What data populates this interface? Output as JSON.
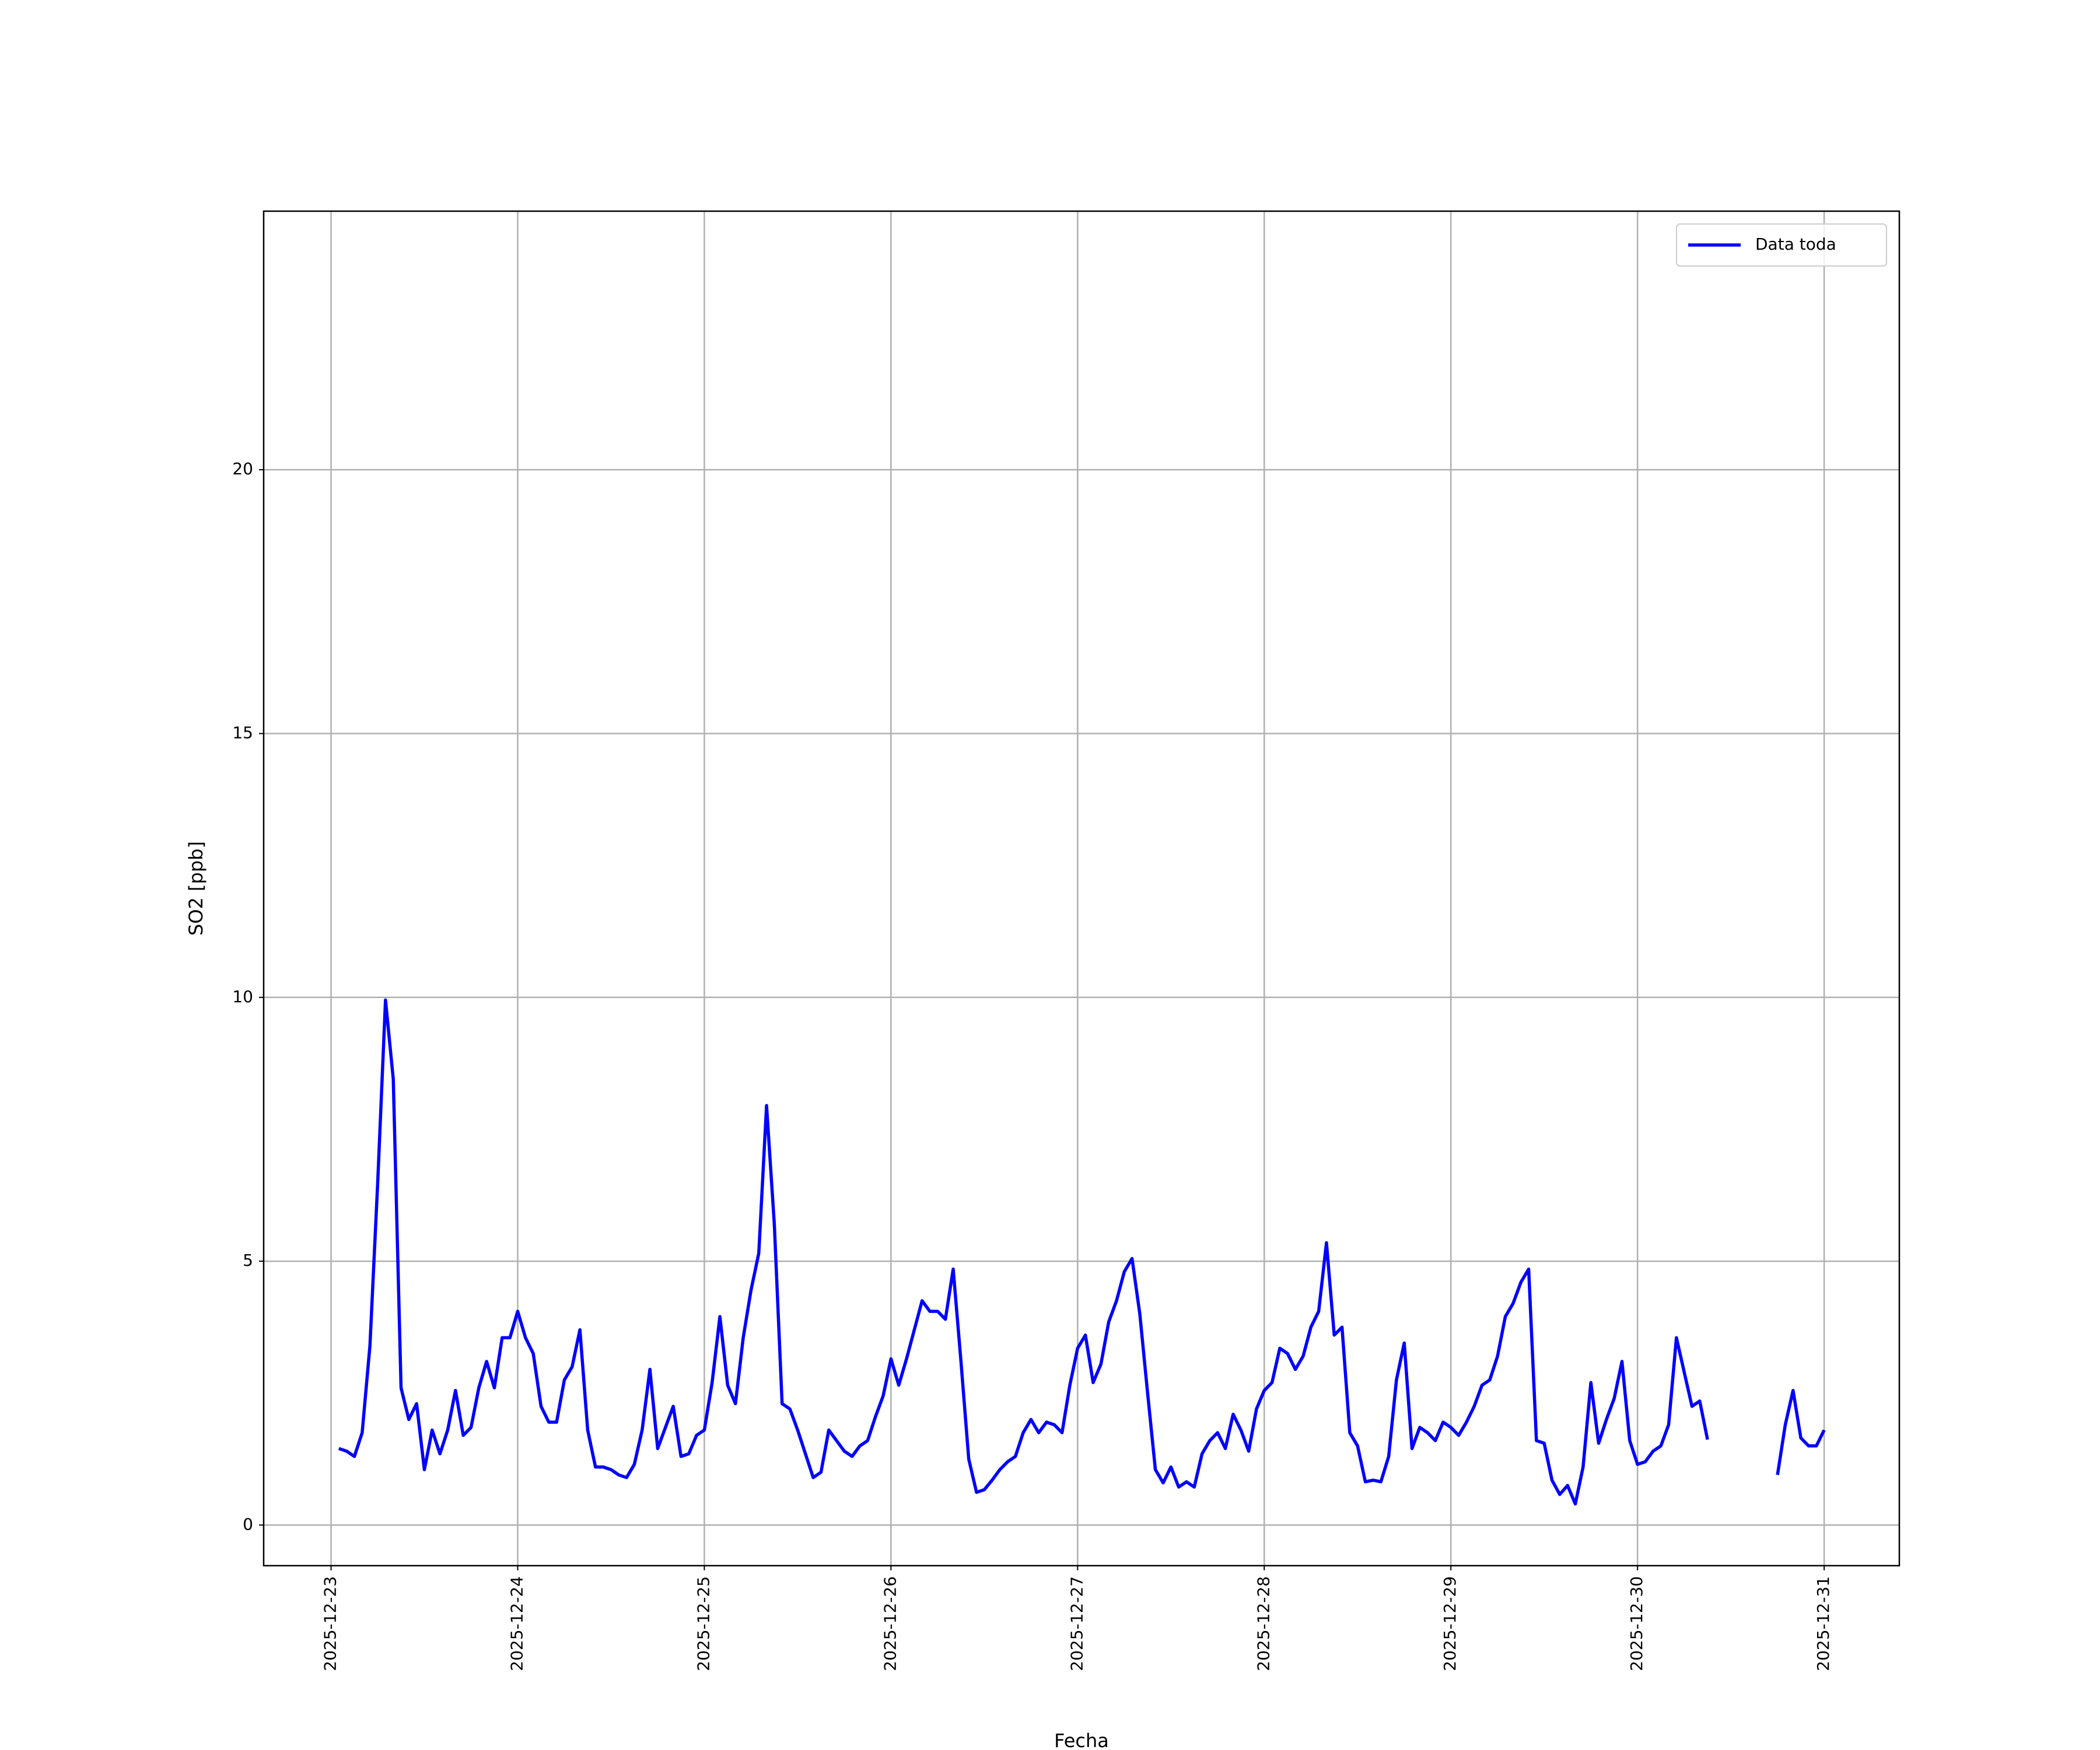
{
  "chart_data": {
    "type": "line",
    "x_label": "Fecha",
    "y_label": "SO2 [ppb]",
    "x": [
      "2025-12-23 01:00",
      "2025-12-23 02:00",
      "2025-12-23 03:00",
      "2025-12-23 04:00",
      "2025-12-23 05:00",
      "2025-12-23 06:00",
      "2025-12-23 07:00",
      "2025-12-23 08:00",
      "2025-12-23 09:00",
      "2025-12-23 10:00",
      "2025-12-23 11:00",
      "2025-12-23 12:00",
      "2025-12-23 13:00",
      "2025-12-23 14:00",
      "2025-12-23 15:00",
      "2025-12-23 16:00",
      "2025-12-23 17:00",
      "2025-12-23 18:00",
      "2025-12-23 19:00",
      "2025-12-23 20:00",
      "2025-12-23 21:00",
      "2025-12-23 22:00",
      "2025-12-23 23:00",
      "2025-12-24 00:00",
      "2025-12-24 01:00",
      "2025-12-24 02:00",
      "2025-12-24 03:00",
      "2025-12-24 04:00",
      "2025-12-24 05:00",
      "2025-12-24 06:00",
      "2025-12-24 07:00",
      "2025-12-24 08:00",
      "2025-12-24 09:00",
      "2025-12-24 10:00",
      "2025-12-24 11:00",
      "2025-12-24 12:00",
      "2025-12-24 13:00",
      "2025-12-24 14:00",
      "2025-12-24 15:00",
      "2025-12-24 16:00",
      "2025-12-24 17:00",
      "2025-12-24 18:00",
      "2025-12-24 19:00",
      "2025-12-24 20:00",
      "2025-12-24 21:00",
      "2025-12-24 22:00",
      "2025-12-24 23:00",
      "2025-12-25 00:00",
      "2025-12-25 01:00",
      "2025-12-25 02:00",
      "2025-12-25 03:00",
      "2025-12-25 04:00",
      "2025-12-25 05:00",
      "2025-12-25 06:00",
      "2025-12-25 07:00",
      "2025-12-25 08:00",
      "2025-12-25 09:00",
      "2025-12-25 10:00",
      "2025-12-25 11:00",
      "2025-12-25 12:00",
      "2025-12-25 13:00",
      "2025-12-25 14:00",
      "2025-12-25 15:00",
      "2025-12-25 16:00",
      "2025-12-25 17:00",
      "2025-12-25 18:00",
      "2025-12-25 19:00",
      "2025-12-25 20:00",
      "2025-12-25 21:00",
      "2025-12-25 22:00",
      "2025-12-25 23:00",
      "2025-12-26 00:00",
      "2025-12-26 01:00",
      "2025-12-26 02:00",
      "2025-12-26 03:00",
      "2025-12-26 04:00",
      "2025-12-26 05:00",
      "2025-12-26 06:00",
      "2025-12-26 07:00",
      "2025-12-26 08:00",
      "2025-12-26 09:00",
      "2025-12-26 10:00",
      "2025-12-26 11:00",
      "2025-12-26 12:00",
      "2025-12-26 13:00",
      "2025-12-26 14:00",
      "2025-12-26 15:00",
      "2025-12-26 16:00",
      "2025-12-26 17:00",
      "2025-12-26 18:00",
      "2025-12-26 19:00",
      "2025-12-26 20:00",
      "2025-12-26 21:00",
      "2025-12-26 22:00",
      "2025-12-26 23:00",
      "2025-12-27 00:00",
      "2025-12-27 01:00",
      "2025-12-27 02:00",
      "2025-12-27 03:00",
      "2025-12-27 04:00",
      "2025-12-27 05:00",
      "2025-12-27 06:00",
      "2025-12-27 07:00",
      "2025-12-27 08:00",
      "2025-12-27 09:00",
      "2025-12-27 10:00",
      "2025-12-27 11:00",
      "2025-12-27 12:00",
      "2025-12-27 13:00",
      "2025-12-27 14:00",
      "2025-12-27 15:00",
      "2025-12-27 16:00",
      "2025-12-27 17:00",
      "2025-12-27 18:00",
      "2025-12-27 19:00",
      "2025-12-27 20:00",
      "2025-12-27 21:00",
      "2025-12-27 22:00",
      "2025-12-27 23:00",
      "2025-12-28 00:00",
      "2025-12-28 01:00",
      "2025-12-28 02:00",
      "2025-12-28 03:00",
      "2025-12-28 04:00",
      "2025-12-28 05:00",
      "2025-12-28 06:00",
      "2025-12-28 07:00",
      "2025-12-28 08:00",
      "2025-12-28 09:00",
      "2025-12-28 10:00",
      "2025-12-28 11:00",
      "2025-12-28 12:00",
      "2025-12-28 13:00",
      "2025-12-28 14:00",
      "2025-12-28 15:00",
      "2025-12-28 16:00",
      "2025-12-28 17:00",
      "2025-12-28 18:00",
      "2025-12-28 19:00",
      "2025-12-28 20:00",
      "2025-12-28 21:00",
      "2025-12-28 22:00",
      "2025-12-28 23:00",
      "2025-12-29 00:00",
      "2025-12-29 01:00",
      "2025-12-29 02:00",
      "2025-12-29 03:00",
      "2025-12-29 04:00",
      "2025-12-29 05:00",
      "2025-12-29 06:00",
      "2025-12-29 07:00",
      "2025-12-29 08:00",
      "2025-12-29 09:00",
      "2025-12-29 10:00",
      "2025-12-29 11:00",
      "2025-12-29 12:00",
      "2025-12-29 13:00",
      "2025-12-29 14:00",
      "2025-12-29 15:00",
      "2025-12-29 16:00",
      "2025-12-29 17:00",
      "2025-12-29 18:00",
      "2025-12-29 19:00",
      "2025-12-29 20:00",
      "2025-12-29 21:00",
      "2025-12-29 22:00",
      "2025-12-29 23:00",
      "2025-12-30 00:00",
      "2025-12-30 01:00",
      "2025-12-30 02:00",
      "2025-12-30 03:00",
      "2025-12-30 04:00",
      "2025-12-30 05:00",
      "2025-12-30 06:00",
      "2025-12-30 07:00",
      "2025-12-30 08:00",
      "2025-12-30 09:00",
      "2025-12-30 10:00",
      "2025-12-30 11:00",
      "2025-12-30 12:00",
      "2025-12-30 13:00",
      "2025-12-30 14:00",
      "2025-12-30 15:00",
      "2025-12-30 16:00",
      "2025-12-30 17:00",
      "2025-12-30 18:00",
      "2025-12-30 19:00",
      "2025-12-30 20:00",
      "2025-12-30 21:00",
      "2025-12-30 22:00",
      "2025-12-30 23:00",
      "2025-12-31 00:00"
    ],
    "series": [
      {
        "name": "Data toda",
        "color": "#0000ff",
        "values": [
          1.45,
          1.4,
          1.3,
          1.75,
          3.4,
          6.5,
          9.95,
          8.45,
          2.6,
          2.0,
          2.3,
          1.05,
          1.8,
          1.35,
          1.8,
          2.55,
          1.7,
          1.85,
          2.6,
          3.1,
          2.6,
          3.55,
          3.55,
          4.05,
          3.55,
          3.25,
          2.25,
          1.95,
          1.95,
          2.75,
          3.0,
          3.7,
          1.8,
          1.1,
          1.1,
          1.05,
          0.95,
          0.9,
          1.15,
          1.8,
          2.95,
          1.45,
          1.85,
          2.25,
          1.3,
          1.35,
          1.7,
          1.8,
          2.7,
          3.95,
          2.65,
          2.3,
          3.55,
          4.45,
          5.15,
          7.95,
          5.7,
          2.3,
          2.2,
          1.8,
          1.35,
          0.9,
          1.0,
          1.8,
          1.6,
          1.4,
          1.3,
          1.5,
          1.6,
          2.05,
          2.45,
          3.15,
          2.65,
          3.15,
          3.7,
          4.25,
          4.05,
          4.05,
          3.9,
          4.85,
          3.1,
          1.25,
          0.62,
          0.67,
          0.85,
          1.05,
          1.2,
          1.3,
          1.75,
          2.0,
          1.75,
          1.95,
          1.9,
          1.75,
          2.65,
          3.35,
          3.6,
          2.7,
          3.05,
          3.85,
          4.25,
          4.8,
          5.05,
          4.0,
          2.5,
          1.05,
          0.8,
          1.1,
          0.72,
          0.82,
          0.72,
          1.35,
          1.6,
          1.75,
          1.45,
          2.1,
          1.8,
          1.4,
          2.2,
          2.55,
          2.7,
          3.35,
          3.25,
          2.95,
          3.2,
          3.75,
          4.05,
          5.35,
          3.6,
          3.75,
          1.75,
          1.5,
          0.82,
          0.85,
          0.82,
          1.3,
          2.75,
          3.45,
          1.45,
          1.85,
          1.75,
          1.6,
          1.95,
          1.85,
          1.7,
          1.95,
          2.25,
          2.65,
          2.75,
          3.2,
          3.95,
          4.2,
          4.6,
          4.85,
          1.6,
          1.55,
          0.85,
          0.58,
          0.75,
          0.4,
          1.1,
          2.7,
          1.55,
          2.0,
          2.4,
          3.1,
          1.6,
          1.15,
          1.2,
          1.4,
          1.5,
          1.9,
          3.55,
          2.9,
          2.25,
          2.35,
          1.62,
          null,
          null,
          null,
          null,
          null,
          null,
          null,
          null,
          0.95,
          1.9,
          2.55,
          1.65,
          1.5,
          1.5,
          1.8
        ]
      }
    ],
    "xlim": [
      "2025-12-22 15:20",
      "2025-12-31 09:40"
    ],
    "xticks": [
      "2025-12-23",
      "2025-12-24",
      "2025-12-25",
      "2025-12-26",
      "2025-12-27",
      "2025-12-28",
      "2025-12-29",
      "2025-12-30",
      "2025-12-31"
    ],
    "ylim": [
      -0.77,
      24.9
    ],
    "yticks": [
      0,
      5,
      10,
      15,
      20
    ],
    "grid": true,
    "legend": "upper right"
  }
}
